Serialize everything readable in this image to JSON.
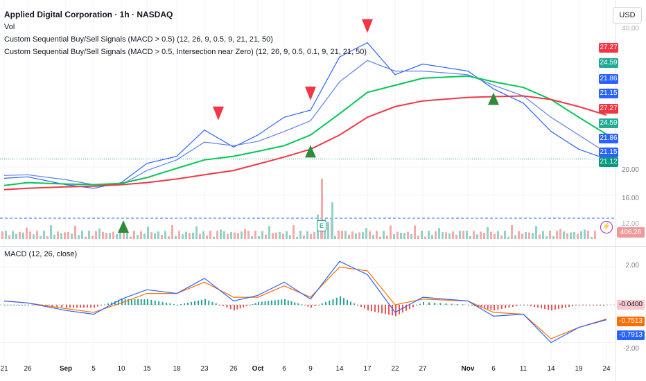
{
  "header": {
    "title": "Applied Digital Corporation · 1h · NASDAQ",
    "vol": "Vol",
    "indicator1": "Custom Sequential Buy/Sell Signals (MACD > 0.5) (12, 26, 9, 0.5, 9, 21, 21, 50)",
    "indicator2": "Custom Sequential Buy/Sell Signals (MACD > 0.5, Intersection near Zero) (12, 26, 9, 0.5, 0.1, 9, 21, 21, 50)"
  },
  "currency_button": "USD",
  "macd_label": "MACD (12, 26, close)",
  "volume_value": "406.26 K",
  "earnings_badge": "E",
  "lightning_icon": "⚡",
  "price_axis": {
    "ticks": [
      "16.00",
      "20.00"
    ],
    "top_partial": "40.00",
    "bottom_partial": "12.00",
    "tags": [
      {
        "value": "27.27",
        "color": "#f23645"
      },
      {
        "value": "24.59",
        "color": "#22ab94"
      },
      {
        "value": "21.86",
        "color": "#2962ff"
      },
      {
        "value": "21.15",
        "color": "#2962ff"
      },
      {
        "value": "27.27",
        "color": "#f23645"
      },
      {
        "value": "24.59",
        "color": "#22ab94"
      },
      {
        "value": "21.86",
        "color": "#2962ff"
      },
      {
        "value": "21.15",
        "color": "#2962ff"
      },
      {
        "value": "21.12",
        "color": "#089981"
      }
    ]
  },
  "macd_axis": {
    "ticks": [
      "2.00",
      "-2.00"
    ],
    "tags": [
      {
        "value": "-0.0400",
        "color": "#f7c9ce",
        "text_color": "#131722"
      },
      {
        "value": "-0.7513",
        "color": "#ff6d00",
        "text_color": "#ffffff"
      },
      {
        "value": "-0.7913",
        "color": "#2962ff",
        "text_color": "#ffffff"
      }
    ]
  },
  "time_axis": [
    "21",
    "26",
    "Sep",
    "5",
    "10",
    "15",
    "18",
    "23",
    "26",
    "Oct",
    "6",
    "9",
    "14",
    "17",
    "22",
    "27",
    "Nov",
    "6",
    "11",
    "14",
    "19",
    "24"
  ],
  "chart_data": {
    "type": "line",
    "title": "Applied Digital Corporation · 1h · NASDAQ",
    "x": [
      "21",
      "26",
      "Sep",
      "5",
      "10",
      "15",
      "18",
      "23",
      "26",
      "Oct",
      "6",
      "9",
      "14",
      "17",
      "22",
      "27",
      "Nov",
      "6",
      "11",
      "14",
      "19",
      "24"
    ],
    "ylim": [
      12,
      40
    ],
    "series": [
      {
        "values": [
          18.4,
          18.6,
          17.5,
          17.0,
          17.8,
          20.5,
          21.5,
          25.2,
          22.8,
          24.5,
          27.0,
          28.0,
          35.5,
          37.5,
          33.0,
          34.5,
          33.5,
          31.0,
          29.0,
          25.0,
          22.5,
          21.1
        ]
      },
      {
        "values": [
          18.8,
          18.9,
          18.2,
          17.5,
          17.5,
          19.5,
          21.0,
          23.5,
          23.0,
          23.6,
          25.0,
          26.5,
          32.0,
          35.0,
          33.5,
          33.5,
          33.0,
          31.5,
          30.0,
          27.0,
          24.5,
          22.0
        ]
      },
      {
        "values": [
          17.4,
          17.8,
          17.6,
          17.5,
          17.7,
          18.5,
          19.8,
          21.0,
          21.5,
          22.2,
          23.0,
          24.5,
          27.5,
          30.5,
          31.5,
          32.5,
          32.8,
          32.0,
          31.2,
          29.5,
          27.0,
          24.6
        ]
      },
      {
        "values": [
          16.8,
          17.0,
          17.2,
          17.3,
          17.5,
          17.8,
          18.3,
          18.9,
          19.5,
          20.4,
          21.4,
          22.5,
          24.5,
          27.0,
          28.5,
          29.3,
          29.8,
          29.9,
          30.0,
          29.5,
          28.5,
          27.3
        ]
      }
    ],
    "macd": {
      "macd_line": [
        0.2,
        0.1,
        -0.3,
        -0.5,
        0.3,
        0.8,
        0.6,
        1.4,
        0.2,
        0.5,
        1.2,
        0.3,
        2.3,
        1.6,
        -0.4,
        0.4,
        0.2,
        -0.6,
        -0.5,
        -2.0,
        -1.2,
        -0.79
      ],
      "signal_line": [
        0.2,
        0.1,
        -0.2,
        -0.4,
        0.1,
        0.6,
        0.6,
        1.2,
        0.4,
        0.4,
        1.0,
        0.4,
        2.0,
        1.8,
        0.0,
        0.3,
        0.2,
        -0.4,
        -0.5,
        -1.8,
        -1.2,
        -0.75
      ]
    },
    "signals": {
      "buy": [
        "10",
        "6",
        "9"
      ],
      "sell": [
        "23",
        "9",
        "17"
      ]
    }
  }
}
